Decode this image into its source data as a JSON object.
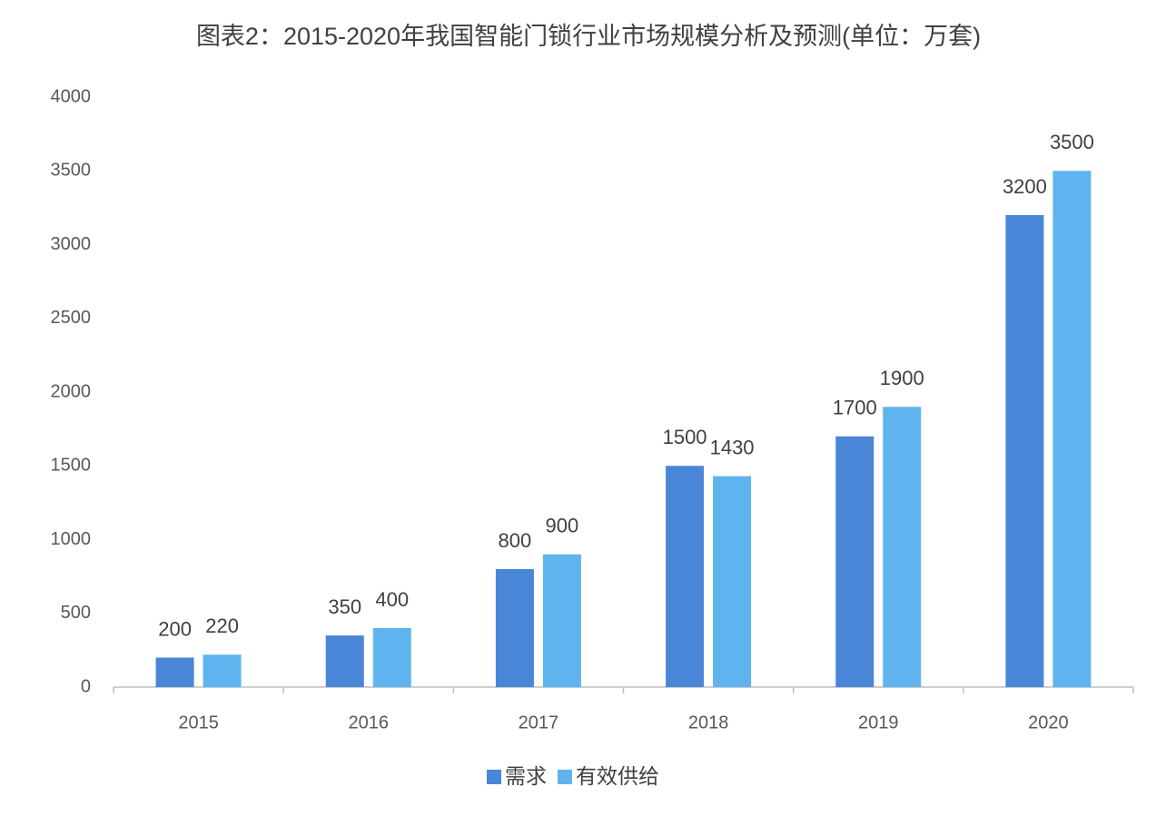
{
  "chart_data": {
    "type": "bar",
    "title": "图表2：2015-2020年我国智能门锁行业市场规模分析及预测(单位：万套)",
    "categories": [
      "2015",
      "2016",
      "2017",
      "2018",
      "2019",
      "2020"
    ],
    "series": [
      {
        "name": "需求",
        "color": "#4a86d8",
        "values": [
          200,
          350,
          800,
          1500,
          1700,
          3200
        ]
      },
      {
        "name": "有效供给",
        "color": "#5fb4ef",
        "values": [
          220,
          400,
          900,
          1430,
          1900,
          3500
        ]
      }
    ],
    "ylim": [
      0,
      4000
    ],
    "yticks": [
      0,
      500,
      1000,
      1500,
      2000,
      2500,
      3000,
      3500,
      4000
    ],
    "grid": false,
    "legend": "bottom"
  }
}
